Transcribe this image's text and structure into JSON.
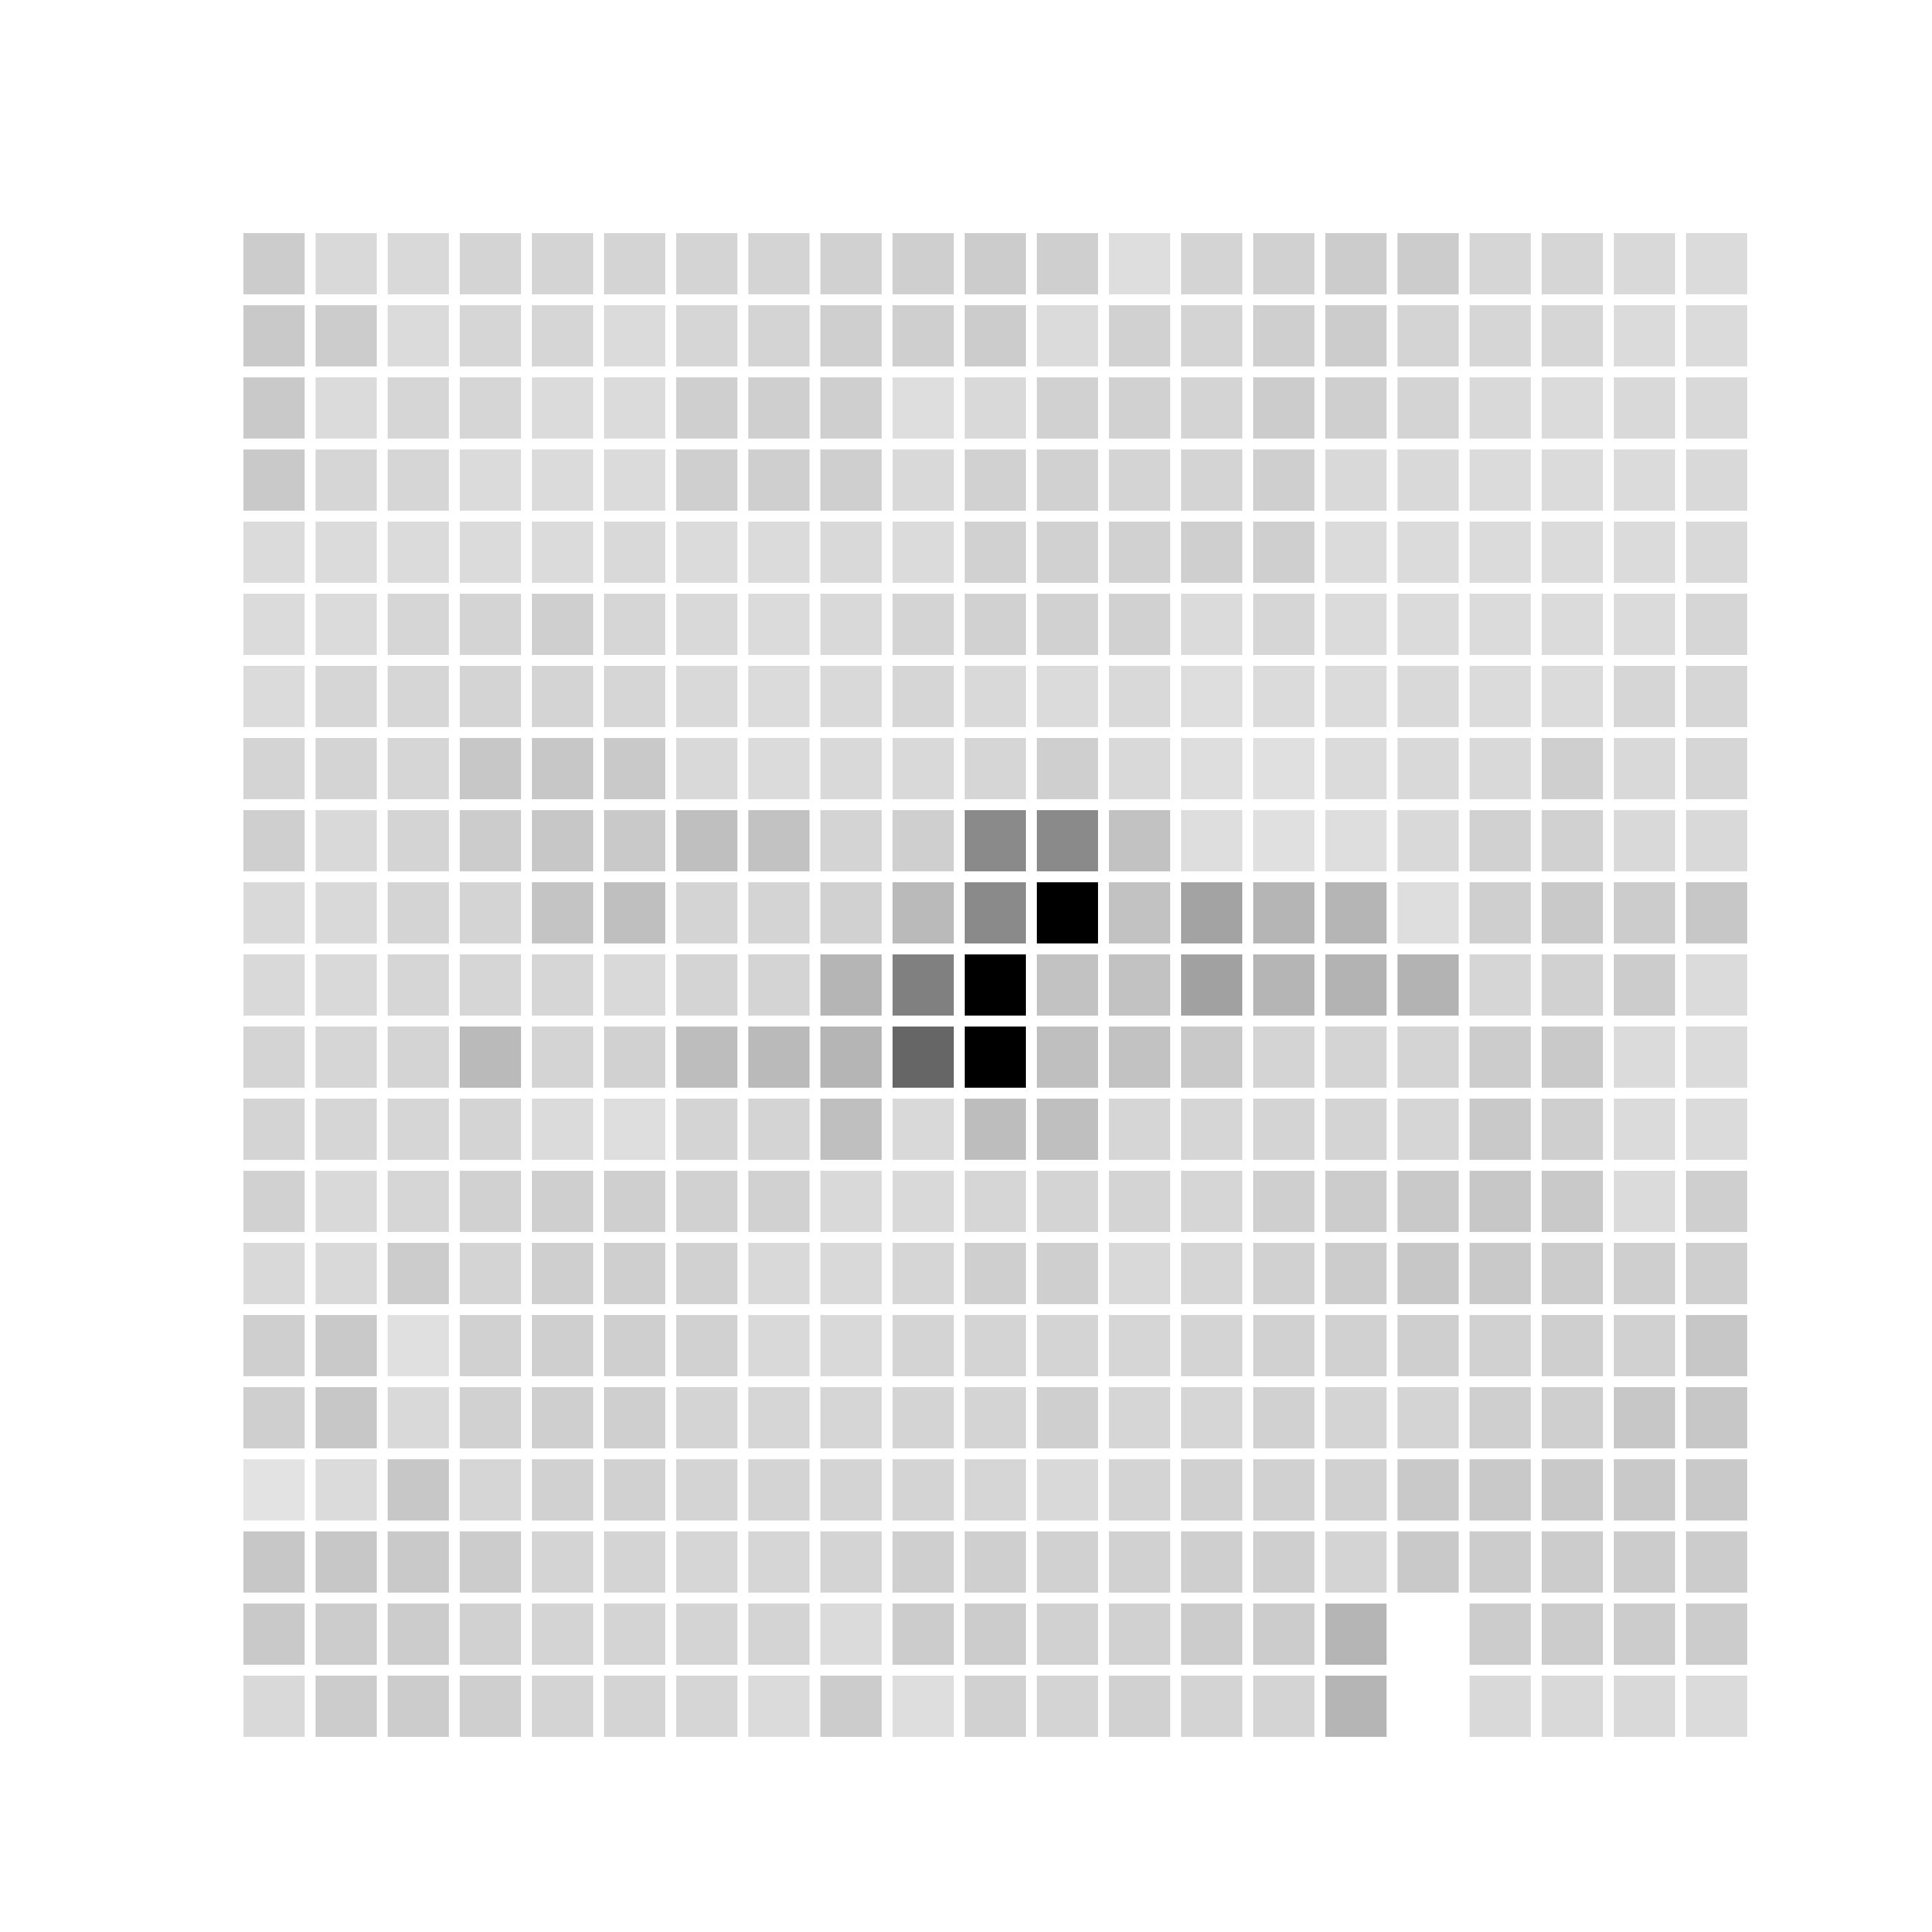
{
  "chart_data": {
    "type": "heatmap",
    "title": "",
    "xlabel": "",
    "ylabel": "",
    "rows": 21,
    "cols": 21,
    "grid": false,
    "colormap": "white-to-black",
    "value_range": [
      0,
      1
    ],
    "background": "#ffffff",
    "missing_value": null,
    "values": [
      [
        0.2,
        0.15,
        0.15,
        0.17,
        0.17,
        0.17,
        0.17,
        0.17,
        0.18,
        0.19,
        0.2,
        0.19,
        0.13,
        0.17,
        0.18,
        0.2,
        0.2,
        0.16,
        0.16,
        0.15,
        0.14
      ],
      [
        0.21,
        0.2,
        0.14,
        0.16,
        0.16,
        0.14,
        0.16,
        0.17,
        0.19,
        0.19,
        0.2,
        0.14,
        0.18,
        0.17,
        0.19,
        0.2,
        0.17,
        0.16,
        0.16,
        0.14,
        0.14
      ],
      [
        0.21,
        0.14,
        0.16,
        0.16,
        0.14,
        0.14,
        0.19,
        0.19,
        0.19,
        0.13,
        0.15,
        0.18,
        0.18,
        0.17,
        0.2,
        0.19,
        0.17,
        0.15,
        0.14,
        0.15,
        0.15
      ],
      [
        0.21,
        0.16,
        0.16,
        0.14,
        0.14,
        0.14,
        0.19,
        0.19,
        0.19,
        0.15,
        0.18,
        0.18,
        0.17,
        0.17,
        0.19,
        0.15,
        0.15,
        0.14,
        0.14,
        0.14,
        0.15
      ],
      [
        0.14,
        0.14,
        0.14,
        0.14,
        0.14,
        0.15,
        0.14,
        0.14,
        0.15,
        0.14,
        0.18,
        0.18,
        0.18,
        0.19,
        0.19,
        0.14,
        0.14,
        0.14,
        0.14,
        0.14,
        0.15
      ],
      [
        0.14,
        0.14,
        0.16,
        0.17,
        0.19,
        0.16,
        0.15,
        0.14,
        0.15,
        0.17,
        0.18,
        0.18,
        0.18,
        0.14,
        0.16,
        0.14,
        0.14,
        0.14,
        0.14,
        0.14,
        0.16
      ],
      [
        0.14,
        0.16,
        0.16,
        0.17,
        0.17,
        0.16,
        0.15,
        0.14,
        0.15,
        0.16,
        0.15,
        0.14,
        0.15,
        0.13,
        0.14,
        0.14,
        0.15,
        0.14,
        0.14,
        0.16,
        0.16
      ],
      [
        0.17,
        0.17,
        0.16,
        0.22,
        0.22,
        0.21,
        0.15,
        0.14,
        0.15,
        0.15,
        0.16,
        0.19,
        0.15,
        0.13,
        0.12,
        0.14,
        0.15,
        0.15,
        0.19,
        0.15,
        0.16
      ],
      [
        0.19,
        0.15,
        0.17,
        0.2,
        0.22,
        0.21,
        0.25,
        0.24,
        0.17,
        0.19,
        0.46,
        0.46,
        0.24,
        0.13,
        0.12,
        0.13,
        0.15,
        0.18,
        0.18,
        0.15,
        0.15
      ],
      [
        0.15,
        0.15,
        0.17,
        0.17,
        0.23,
        0.25,
        0.17,
        0.17,
        0.18,
        0.27,
        0.46,
        1.0,
        0.24,
        0.36,
        0.29,
        0.29,
        0.13,
        0.19,
        0.21,
        0.2,
        0.22
      ],
      [
        0.15,
        0.15,
        0.16,
        0.16,
        0.16,
        0.15,
        0.17,
        0.17,
        0.29,
        0.5,
        1.0,
        0.24,
        0.24,
        0.37,
        0.29,
        0.3,
        0.3,
        0.16,
        0.18,
        0.2,
        0.14
      ],
      [
        0.17,
        0.16,
        0.17,
        0.27,
        0.17,
        0.18,
        0.26,
        0.27,
        0.29,
        0.6,
        1.0,
        0.25,
        0.24,
        0.21,
        0.17,
        0.17,
        0.17,
        0.2,
        0.21,
        0.14,
        0.14
      ],
      [
        0.17,
        0.16,
        0.16,
        0.17,
        0.14,
        0.13,
        0.17,
        0.17,
        0.25,
        0.15,
        0.26,
        0.25,
        0.16,
        0.16,
        0.17,
        0.17,
        0.16,
        0.21,
        0.19,
        0.14,
        0.14
      ],
      [
        0.18,
        0.15,
        0.16,
        0.18,
        0.19,
        0.19,
        0.18,
        0.18,
        0.15,
        0.15,
        0.16,
        0.17,
        0.17,
        0.16,
        0.19,
        0.2,
        0.21,
        0.22,
        0.21,
        0.14,
        0.19
      ],
      [
        0.15,
        0.15,
        0.2,
        0.17,
        0.19,
        0.19,
        0.18,
        0.15,
        0.15,
        0.16,
        0.19,
        0.19,
        0.15,
        0.16,
        0.18,
        0.2,
        0.22,
        0.21,
        0.2,
        0.19,
        0.19
      ],
      [
        0.19,
        0.21,
        0.12,
        0.18,
        0.19,
        0.19,
        0.18,
        0.15,
        0.15,
        0.17,
        0.17,
        0.17,
        0.16,
        0.17,
        0.18,
        0.18,
        0.19,
        0.18,
        0.19,
        0.18,
        0.22
      ],
      [
        0.19,
        0.22,
        0.15,
        0.18,
        0.19,
        0.19,
        0.17,
        0.16,
        0.16,
        0.17,
        0.17,
        0.19,
        0.16,
        0.16,
        0.18,
        0.17,
        0.17,
        0.19,
        0.19,
        0.22,
        0.22
      ],
      [
        0.11,
        0.14,
        0.22,
        0.16,
        0.18,
        0.18,
        0.17,
        0.17,
        0.17,
        0.17,
        0.16,
        0.15,
        0.17,
        0.18,
        0.18,
        0.18,
        0.21,
        0.21,
        0.21,
        0.21,
        0.21
      ],
      [
        0.22,
        0.22,
        0.21,
        0.2,
        0.17,
        0.17,
        0.16,
        0.16,
        0.17,
        0.19,
        0.19,
        0.18,
        0.18,
        0.19,
        0.19,
        0.17,
        0.21,
        0.2,
        0.2,
        0.2,
        0.2
      ],
      [
        0.21,
        0.2,
        0.2,
        0.18,
        0.17,
        0.17,
        0.17,
        0.17,
        0.14,
        0.2,
        0.2,
        0.18,
        0.18,
        0.2,
        0.2,
        0.29,
        null,
        0.2,
        0.2,
        0.2,
        0.2
      ],
      [
        0.15,
        0.2,
        0.2,
        0.19,
        0.17,
        0.17,
        0.16,
        0.14,
        0.2,
        0.13,
        0.18,
        0.17,
        0.18,
        0.17,
        0.17,
        0.29,
        null,
        0.15,
        0.15,
        0.15,
        0.14
      ]
    ]
  }
}
